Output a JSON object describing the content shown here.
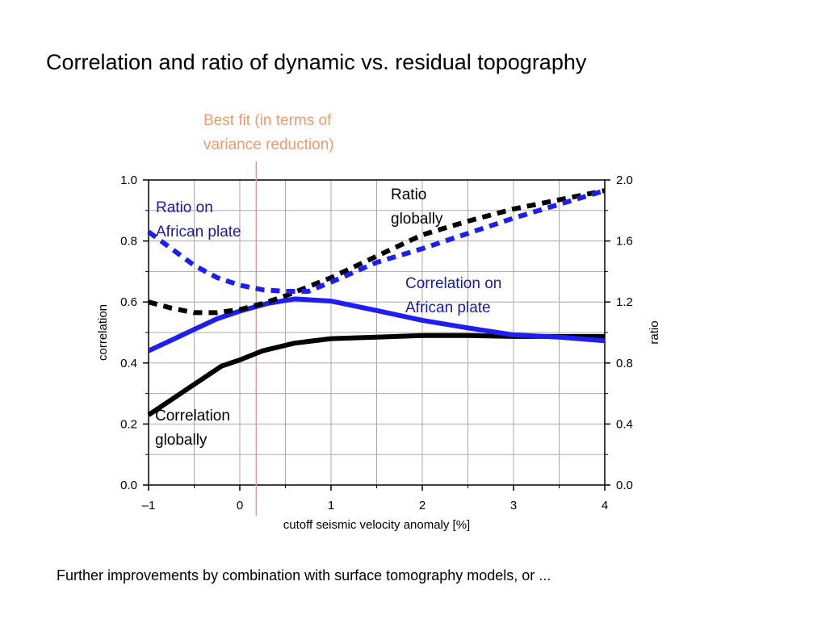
{
  "slide": {
    "title": "Correlation and ratio of dynamic vs. residual topography",
    "footer": "Further improvements by combination with surface tomography models, or  ...",
    "best_fit_label": [
      "Best fit (in terms of",
      "variance reduction)"
    ]
  },
  "colors": {
    "black_series": "#000000",
    "blue_series": "#1e1ef0",
    "best_fit_line": "#ee9a6c",
    "grid": "#aaaaaa",
    "annotation_blue": "#1b1b9e"
  },
  "chart_data": {
    "type": "line",
    "title": "",
    "xlabel": "cutoff seismic velocity anomaly [%]",
    "ylabel_left": "correlation",
    "ylabel_right": "ratio",
    "xlim": [
      -1,
      4
    ],
    "ylim_left": [
      0.0,
      1.0
    ],
    "ylim_right": [
      0.0,
      2.0
    ],
    "x_ticks": [
      -1,
      0,
      1,
      2,
      3,
      4
    ],
    "x_tick_labels": [
      "–1",
      "0",
      "1",
      "2",
      "3",
      "4"
    ],
    "y_left_ticks": [
      0.0,
      0.2,
      0.4,
      0.6,
      0.8,
      1.0
    ],
    "y_left_tick_labels": [
      "0.0",
      "0.2",
      "0.4",
      "0.6",
      "0.8",
      "1.0"
    ],
    "y_right_ticks": [
      0.0,
      0.4,
      0.8,
      1.2,
      1.6,
      2.0
    ],
    "y_right_tick_labels": [
      "0.0",
      "0.4",
      "0.8",
      "1.2",
      "1.6",
      "2.0"
    ],
    "grid": true,
    "best_fit_x": 0.18,
    "series": [
      {
        "axis": "left",
        "style": "solid",
        "color": "#000000",
        "x": [
          -1,
          -0.75,
          -0.5,
          -0.2,
          0,
          0.25,
          0.6,
          1,
          1.5,
          2,
          2.5,
          3,
          3.5,
          4
        ],
        "y": [
          0.23,
          0.28,
          0.33,
          0.39,
          0.41,
          0.44,
          0.465,
          0.48,
          0.485,
          0.49,
          0.49,
          0.487,
          0.487,
          0.487
        ]
      },
      {
        "axis": "left",
        "style": "solid",
        "color": "#1e1ef0",
        "x": [
          -1,
          -0.75,
          -0.5,
          -0.25,
          0,
          0.3,
          0.6,
          1,
          1.5,
          2,
          2.5,
          3,
          3.5,
          4
        ],
        "y": [
          0.44,
          0.475,
          0.51,
          0.545,
          0.57,
          0.595,
          0.61,
          0.603,
          0.572,
          0.54,
          0.515,
          0.492,
          0.485,
          0.473
        ]
      },
      {
        "axis": "right",
        "style": "dashed",
        "color": "#000000",
        "x": [
          -1,
          -0.75,
          -0.5,
          -0.25,
          0,
          0.25,
          0.5,
          0.75,
          1,
          1.5,
          2,
          2.5,
          3,
          3.5,
          4
        ],
        "y": [
          1.2,
          1.16,
          1.13,
          1.13,
          1.15,
          1.19,
          1.24,
          1.3,
          1.36,
          1.5,
          1.64,
          1.73,
          1.81,
          1.87,
          1.93
        ]
      },
      {
        "axis": "right",
        "style": "dashed",
        "color": "#1e1ef0",
        "x": [
          -1,
          -0.75,
          -0.5,
          -0.25,
          0,
          0.25,
          0.5,
          0.75,
          1,
          1.5,
          2,
          2.5,
          3,
          3.5,
          4
        ],
        "y": [
          1.66,
          1.55,
          1.44,
          1.36,
          1.31,
          1.28,
          1.27,
          1.27,
          1.33,
          1.46,
          1.55,
          1.65,
          1.75,
          1.84,
          1.93
        ]
      }
    ],
    "annotations": [
      {
        "lines": [
          "Ratio",
          "globally"
        ],
        "color": "black"
      },
      {
        "lines": [
          "Ratio on",
          "African plate"
        ],
        "color": "blue"
      },
      {
        "lines": [
          "Correlation on",
          "African plate"
        ],
        "color": "blue"
      },
      {
        "lines": [
          "Correlation",
          "globally"
        ],
        "color": "black"
      }
    ]
  }
}
